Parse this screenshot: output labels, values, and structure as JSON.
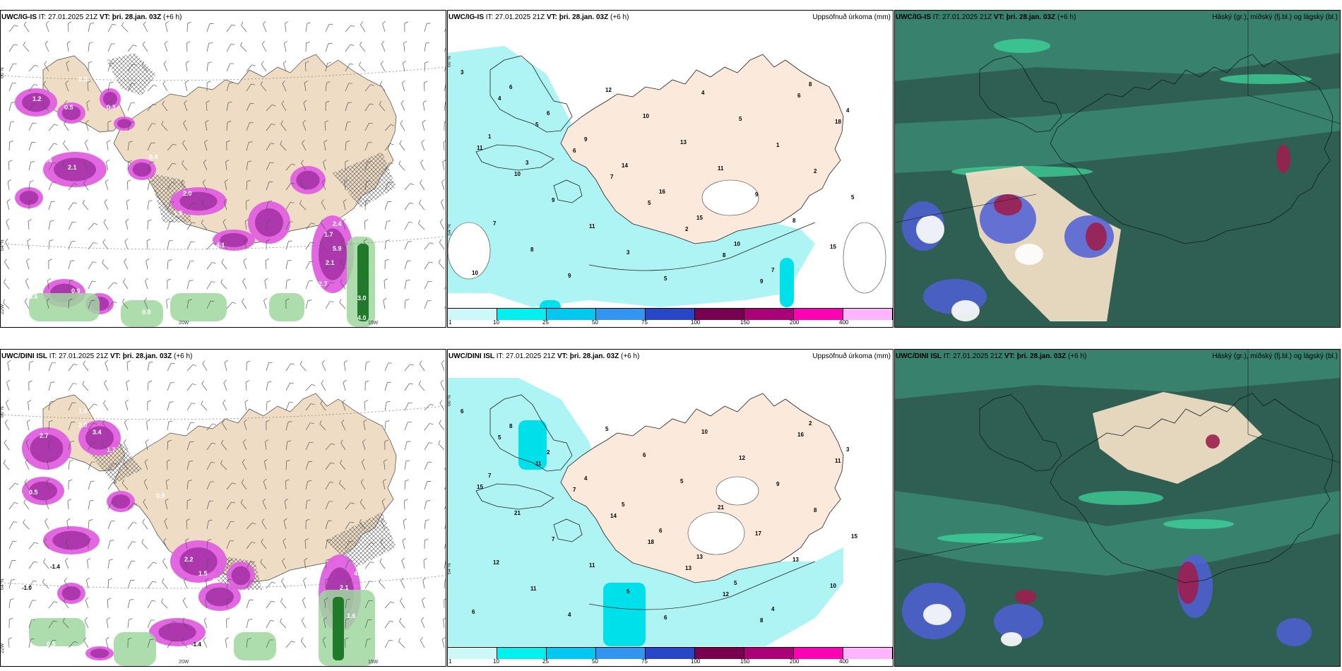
{
  "panels": [
    {
      "model": "UWC/IG-IS",
      "it_label": "IT:",
      "it": "27.01.2025 21Z",
      "vt_label": "VT:",
      "vt": "þri. 28.jan. 03Z",
      "lead": "(+6 h)",
      "right_title": ""
    },
    {
      "model": "UWC/IG-IS",
      "it_label": "IT:",
      "it": "27.01.2025 21Z",
      "vt_label": "VT:",
      "vt": "þri. 28.jan. 03Z",
      "lead": "(+6 h)",
      "right_title": "Uppsöfnuð úrkoma (mm)"
    },
    {
      "model": "UWC/IG-IS",
      "it_label": "IT:",
      "it": "27.01.2025 21Z",
      "vt_label": "VT:",
      "vt": "þri. 28.jan. 03Z",
      "lead": "(+6 h)",
      "right_title": "Háský (gr.), miðský (fj.bl.) og lágský (bl.)"
    },
    {
      "model": "UWC/DINI ISL",
      "it_label": "IT:",
      "it": "27.01.2025 21Z",
      "vt_label": "VT:",
      "vt": "þri. 28.jan. 03Z",
      "lead": "(+6 h)",
      "right_title": ""
    },
    {
      "model": "UWC/DINI ISL",
      "it_label": "IT:",
      "it": "27.01.2025 21Z",
      "vt_label": "VT:",
      "vt": "þri. 28.jan. 03Z",
      "lead": "(+6 h)",
      "right_title": "Uppsöfnuð úrkoma (mm)"
    },
    {
      "model": "UWC/DINI ISL",
      "it_label": "IT:",
      "it": "27.01.2025 21Z",
      "vt_label": "VT:",
      "vt": "þri. 28.jan. 03Z",
      "lead": "(+6 h)",
      "right_title": "Háský (gr.), miðský (fj.bl.) og lágský (bl.)"
    }
  ],
  "colorbar": {
    "labels": [
      "1",
      "10",
      "25",
      "50",
      "75",
      "100",
      "150",
      "200",
      "400"
    ],
    "colors": [
      "#cdf8f8",
      "#00f0f0",
      "#00c8f0",
      "#3296f0",
      "#2846c8",
      "#780050",
      "#aa0078",
      "#ff00b4",
      "#ffb4ff"
    ]
  },
  "map_labels": {
    "lat66": "66°N",
    "lat64": "64°N",
    "lon20": "20W",
    "lon22": "22W",
    "lon15": "15W"
  },
  "precip_labels_top": [
    "3",
    "4",
    "5",
    "6",
    "7",
    "5",
    "2",
    "8",
    "9",
    "6",
    "18",
    "11",
    "10",
    "9",
    "11",
    "3",
    "5",
    "4",
    "5",
    "1",
    "2",
    "5",
    "7",
    "8",
    "9",
    "12",
    "10",
    "13",
    "11",
    "9",
    "8",
    "15",
    "10",
    "6",
    "6",
    "9",
    "14",
    "16",
    "15",
    "10",
    "7",
    "8",
    "4",
    "1",
    "3"
  ],
  "precip_labels_bottom": [
    "6",
    "5",
    "11",
    "7",
    "14",
    "18",
    "13",
    "12",
    "8",
    "16",
    "11",
    "15",
    "21",
    "7",
    "11",
    "5",
    "6",
    "10",
    "12",
    "9",
    "8",
    "15",
    "12",
    "11",
    "4",
    "5",
    "6",
    "5",
    "21",
    "17",
    "13",
    "10",
    "6",
    "8",
    "2",
    "4",
    "5",
    "6",
    "13",
    "5",
    "4",
    "2",
    "3",
    "7"
  ],
  "rain_labels_top": [
    "0.3",
    "1.2",
    "0.5",
    "0.3",
    "0.3",
    "0.6",
    "0.4",
    "2.1",
    "1.3",
    "0.4",
    "2.0",
    "1.5",
    "0.5",
    "2.6",
    "4.1",
    "2.4",
    "1.7",
    "5.9",
    "2.1",
    "2.7",
    "3.0",
    "4.0",
    "0.8",
    "0.9",
    "0.6",
    "0.8"
  ],
  "rain_labels_bottom": [
    "1.6",
    "2.0",
    "2.7",
    "3.4",
    "1.7",
    "2.6",
    "1.0",
    "0.5",
    "1.1",
    "0.9",
    "2.2",
    "1.5",
    "1.3",
    "2.3",
    "2.6",
    "4.3",
    "2.1",
    "1.4",
    "1.6",
    "-1.4",
    "-1.0",
    "0.6",
    "0.5",
    "-1.4",
    "3.6"
  ]
}
